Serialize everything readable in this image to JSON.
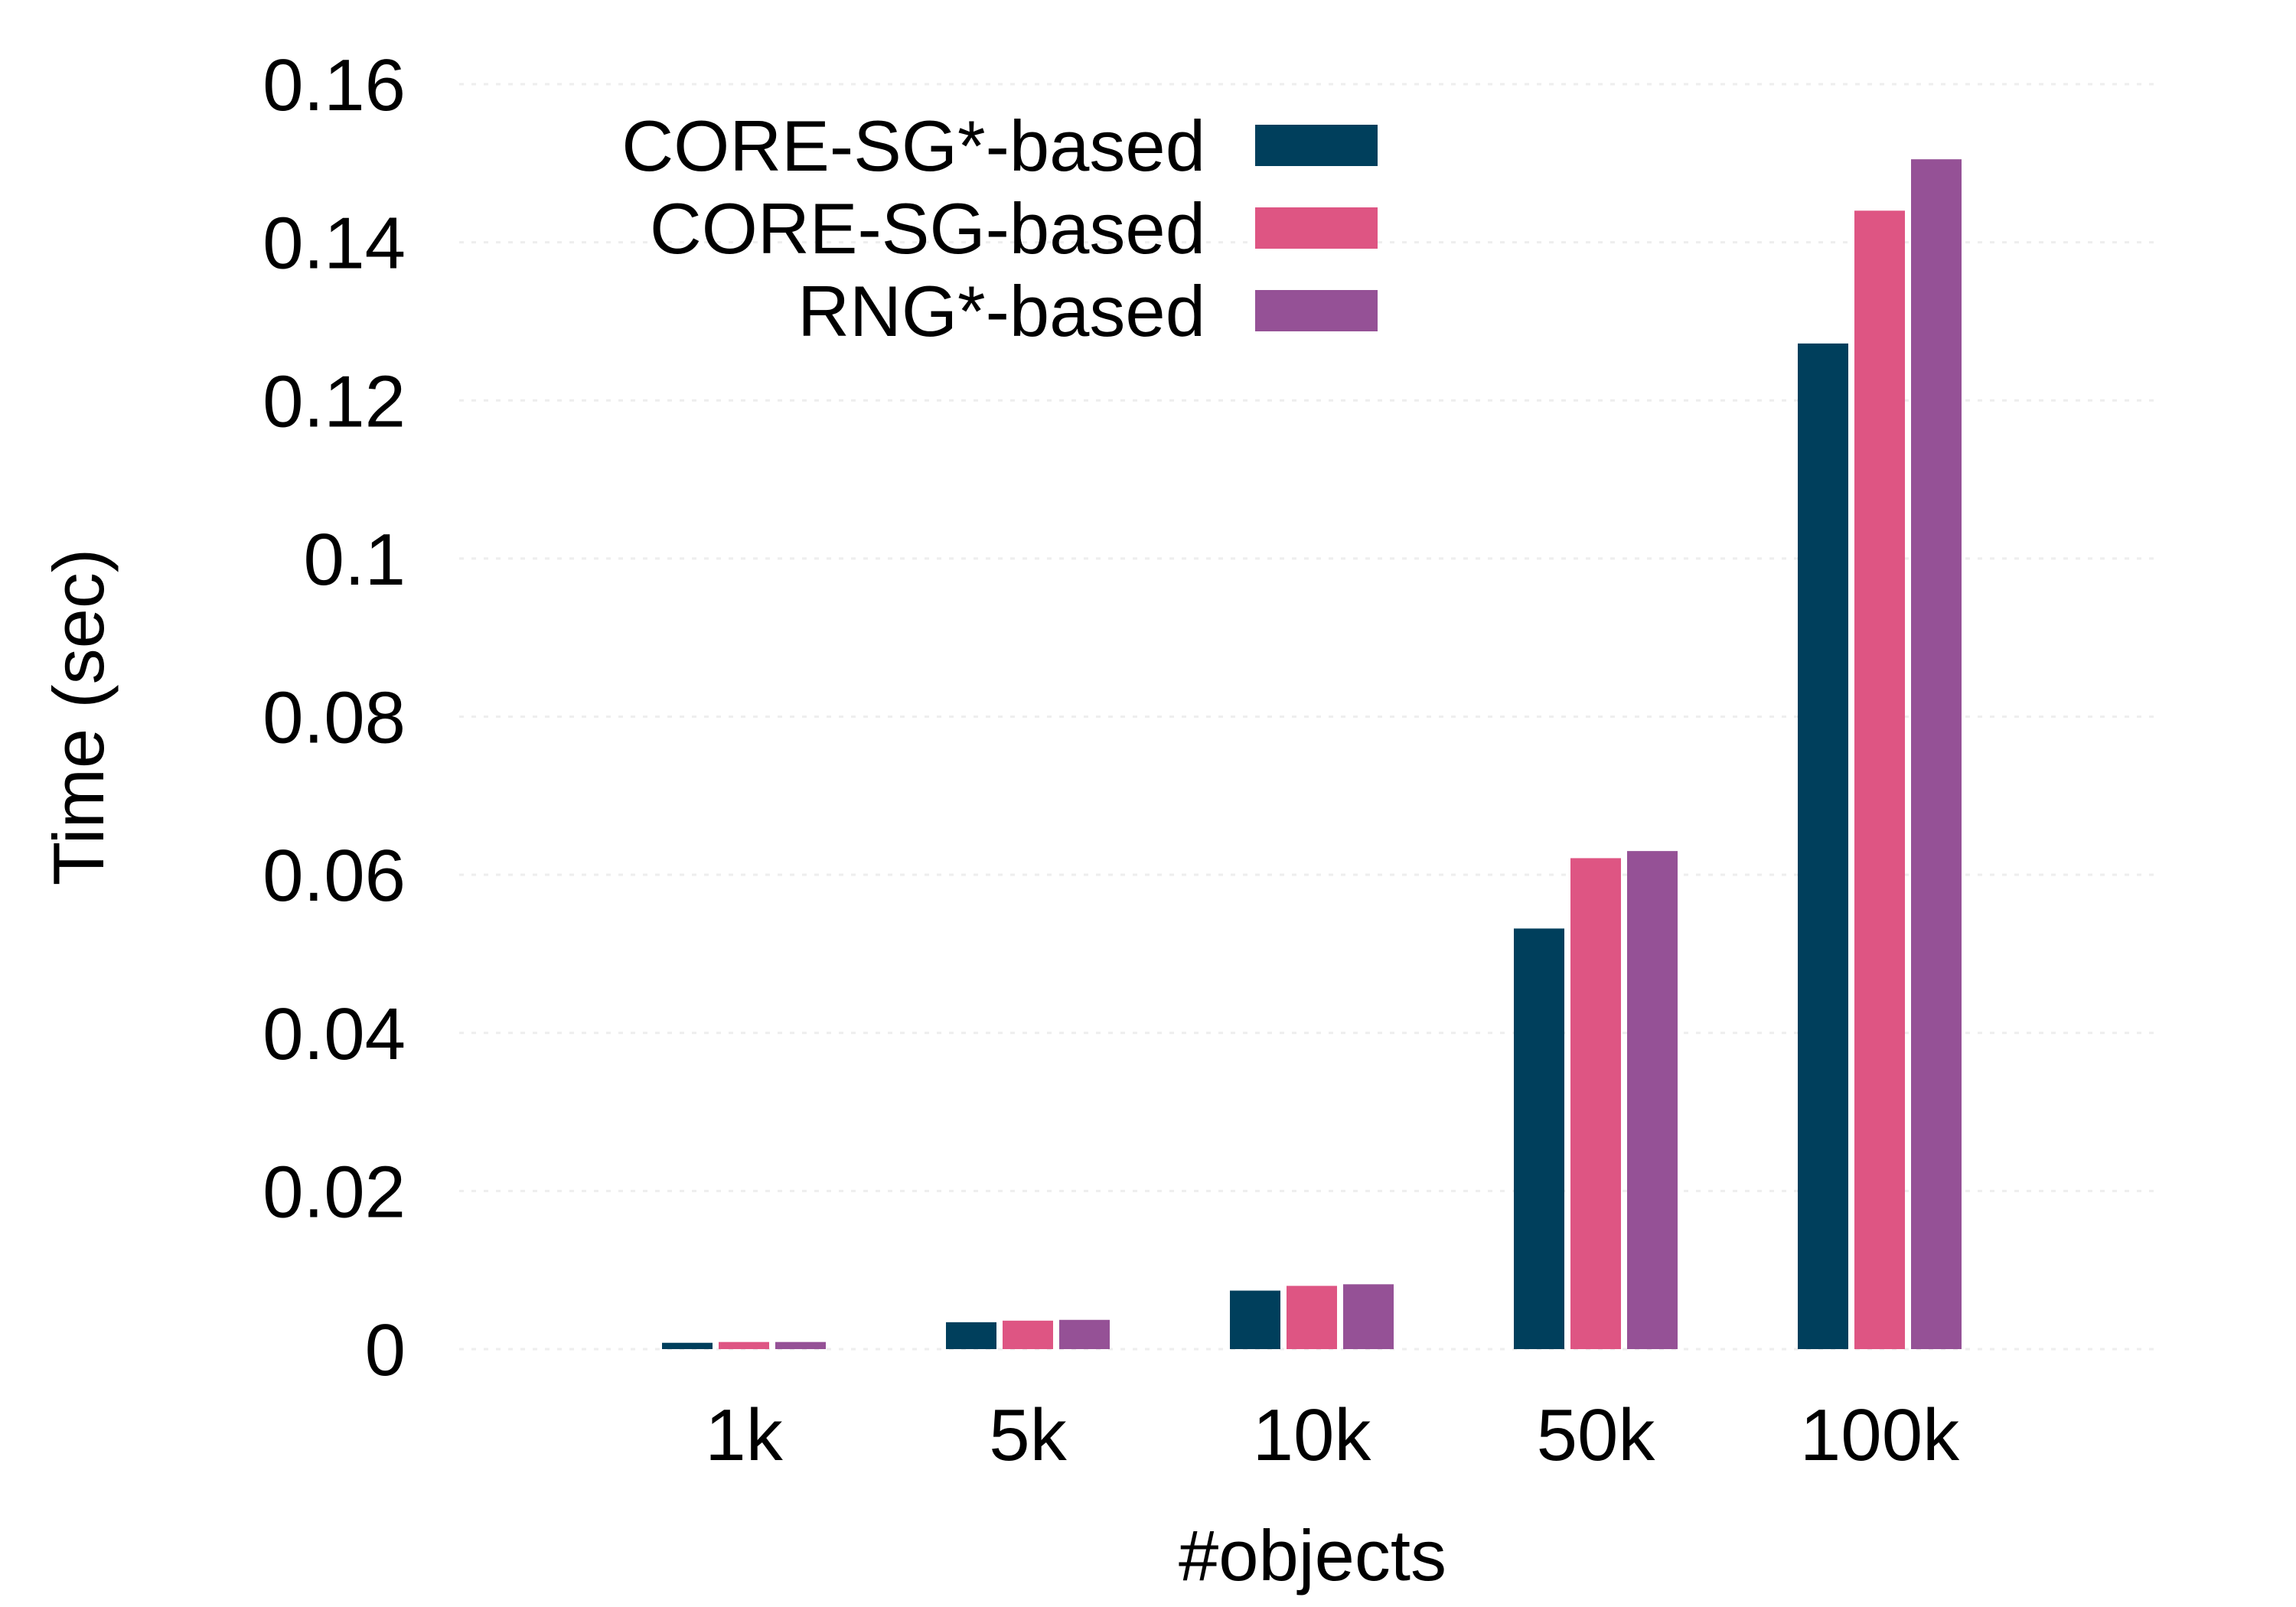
{
  "chart_data": {
    "type": "bar",
    "title": "",
    "xlabel": "#objects",
    "ylabel": "Time (sec)",
    "categories": [
      "1k",
      "5k",
      "10k",
      "50k",
      "100k"
    ],
    "series": [
      {
        "name": "CORE-SG*-based",
        "color": "#003f5c",
        "values": [
          0.0008,
          0.0034,
          0.0074,
          0.0532,
          0.1272
        ]
      },
      {
        "name": "CORE-SG-based",
        "color": "#de5583",
        "values": [
          0.0009,
          0.0036,
          0.008,
          0.0621,
          0.144
        ]
      },
      {
        "name": "RNG*-based",
        "color": "#955196",
        "values": [
          0.0009,
          0.0037,
          0.0082,
          0.063,
          0.1505
        ]
      }
    ],
    "ylim": [
      0,
      0.16
    ],
    "yticks": [
      0,
      0.02,
      0.04,
      0.06,
      0.08,
      0.1,
      0.12,
      0.14,
      0.16
    ],
    "ytick_labels": [
      "0",
      "0.02",
      "0.04",
      "0.06",
      "0.08",
      "0.1",
      "0.12",
      "0.14",
      "0.16"
    ],
    "grid": "horizontal dotted",
    "legend_position": "top-left"
  }
}
